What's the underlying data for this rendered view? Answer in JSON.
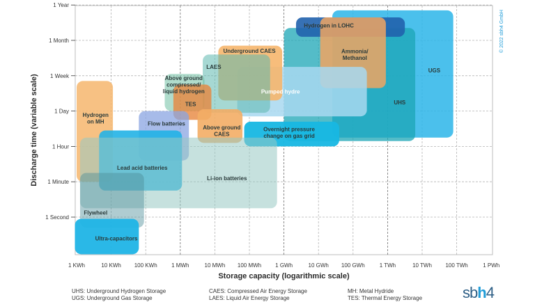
{
  "chart_data": {
    "type": "area",
    "title": "",
    "xlabel": "Storage capacity (logarithmic scale)",
    "ylabel": "Discharge time (variable scale)",
    "x_ticks": [
      "1 KWh",
      "10 KWh",
      "100 KWh",
      "1 MWh",
      "10 MWh",
      "100 MWh",
      "1 GWh",
      "10 GWh",
      "100 GWh",
      "1 TWh",
      "10 TWh",
      "100 TWh",
      "1 PWh"
    ],
    "y_ticks": [
      "1 Second",
      "1 Minute",
      "1 Hour",
      "1 Day",
      "1 Week",
      "1 Month",
      "1 Year"
    ],
    "x_unit_note": "x values are log10 of storage capacity in kWh",
    "y_unit_note": "y values are tick indices: 0=1 Second, 1=1 Minute, 2=1 Hour, 3=1 Day, 4=1 Week, 5=1 Month, 6=1 Year",
    "grid": true,
    "copyright": "© 2022 sbh4 GmbH",
    "technologies": [
      {
        "label": "UGS",
        "x": [
          7.4,
          10.9
        ],
        "y": [
          2.25,
          5.85
        ],
        "color": "#2bb5e9",
        "opacity": 0.85,
        "label_at": [
          10.35,
          4.15
        ]
      },
      {
        "label": "UHS",
        "x": [
          6.0,
          9.8
        ],
        "y": [
          2.15,
          5.35
        ],
        "color": "#1ba6b5",
        "opacity": 0.75,
        "label_at": [
          9.35,
          3.25
        ]
      },
      {
        "label": "Hydrogen in LOHC",
        "x": [
          6.35,
          9.5
        ],
        "y": [
          5.1,
          5.65
        ],
        "color": "#2162ad",
        "opacity": 0.9,
        "label_at": [
          7.3,
          5.42
        ]
      },
      {
        "label": "Ammonia/\nMethanol",
        "x": [
          7.05,
          8.95
        ],
        "y": [
          3.65,
          5.65
        ],
        "color": "#f0a461",
        "opacity": 0.85,
        "label_at": [
          8.05,
          4.6
        ]
      },
      {
        "label": "Pumped hydre",
        "x": [
          4.65,
          8.4
        ],
        "y": [
          2.85,
          4.25
        ],
        "color": "#a8d8f0",
        "opacity": 0.85,
        "label_at": [
          5.9,
          3.55
        ]
      },
      {
        "label": "Underground CAES",
        "x": [
          4.1,
          5.95
        ],
        "y": [
          3.3,
          4.85
        ],
        "color": "#f6b66d",
        "opacity": 0.9,
        "label_at": [
          5.0,
          4.7
        ]
      },
      {
        "label": "LAES",
        "x": [
          3.65,
          5.6
        ],
        "y": [
          2.95,
          4.6
        ],
        "color": "#5cb8ae",
        "opacity": 0.55,
        "label_at": [
          3.97,
          4.25
        ]
      },
      {
        "label": "Above ground\ncompressed/\nliquid hydrogen",
        "x": [
          2.55,
          3.7
        ],
        "y": [
          3.0,
          4.05
        ],
        "color": "#6fbfa3",
        "opacity": 0.55,
        "label_at": [
          3.1,
          3.75
        ]
      },
      {
        "label": "TES",
        "x": [
          2.8,
          3.9
        ],
        "y": [
          2.75,
          3.75
        ],
        "color": "#e7873e",
        "opacity": 0.8,
        "label_at": [
          3.3,
          3.2
        ]
      },
      {
        "label": "Above ground\nCAES",
        "x": [
          3.5,
          4.8
        ],
        "y": [
          2.1,
          3.05
        ],
        "color": "#f3ad65",
        "opacity": 0.9,
        "label_at": [
          4.2,
          2.45
        ]
      },
      {
        "label": "Overnight pressure\nchange on gas grid",
        "x": [
          4.85,
          7.6
        ],
        "y": [
          2.0,
          2.7
        ],
        "color": "#17b7e3",
        "opacity": 0.95,
        "label_at": [
          6.15,
          2.4
        ]
      },
      {
        "label": "Hydrogen\non MH",
        "x": [
          0.0,
          1.05
        ],
        "y": [
          1.0,
          3.85
        ],
        "color": "#f6b66d",
        "opacity": 0.85,
        "label_at": [
          0.55,
          2.8
        ]
      },
      {
        "label": "Flow batteries",
        "x": [
          1.8,
          3.25
        ],
        "y": [
          1.6,
          3.0
        ],
        "color": "#8aa4e2",
        "opacity": 0.75,
        "label_at": [
          2.6,
          2.65
        ]
      },
      {
        "label": "Lead acid batteries",
        "x": [
          0.65,
          3.05
        ],
        "y": [
          0.75,
          2.45
        ],
        "color": "#22b2e6",
        "opacity": 0.9,
        "label_at": [
          1.9,
          1.4
        ]
      },
      {
        "label": "Li-ion batteries",
        "x": [
          0.1,
          5.8
        ],
        "y": [
          0.25,
          2.25
        ],
        "color": "#97c8c2",
        "opacity": 0.55,
        "label_at": [
          4.35,
          1.1
        ]
      },
      {
        "label": "Flywheel",
        "x": [
          0.1,
          1.95
        ],
        "y": [
          -0.3,
          1.25
        ],
        "color": "#4d8f98",
        "opacity": 0.45,
        "label_at": [
          0.55,
          0.13
        ]
      },
      {
        "label": "Ultra-capacitors",
        "x": [
          -0.05,
          1.8
        ],
        "y": [
          -1.05,
          -0.05
        ],
        "color": "#1fb4e6",
        "opacity": 0.95,
        "label_at": [
          1.15,
          -0.6
        ]
      }
    ]
  },
  "legend": {
    "col1": [
      "UHS: Underground Hydrogen Storage",
      "UGS: Underground Gas Storage"
    ],
    "col2": [
      "CAES: Compressed Air Energy Storage",
      "LAES: Liquid Air Energy Storage"
    ],
    "col3": [
      "MH: Metal Hydride",
      "TES: Thermal Energy Storage"
    ]
  },
  "brand": {
    "pre": "sb",
    "hl": "h",
    "post": "4"
  }
}
